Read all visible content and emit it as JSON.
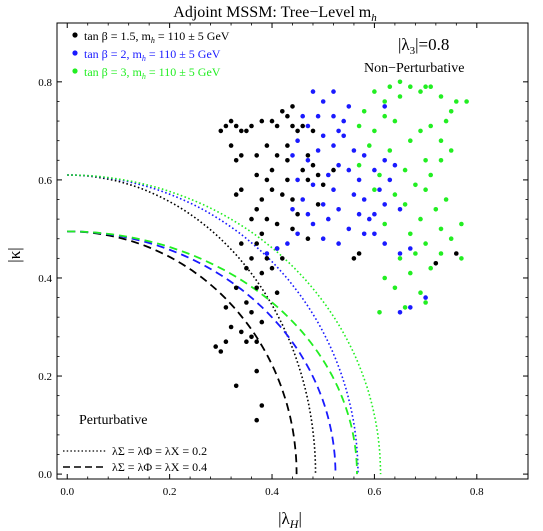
{
  "chart_data": {
    "type": "scatter",
    "title": "Adjoint MSSM: Tree−Level m",
    "title_sub": "h",
    "xlabel": "|λ",
    "xlabel_sub": "H",
    "xlabel_end": "|",
    "ylabel": "|κ|",
    "xlim": [
      -0.02,
      0.9
    ],
    "ylim": [
      -0.01,
      0.92
    ],
    "xticks": [
      "0.0",
      "0.2",
      "0.4",
      "0.6",
      "0.8"
    ],
    "yticks": [
      "0.0",
      "0.2",
      "0.4",
      "0.6",
      "0.8"
    ],
    "xtick_values": [
      0.0,
      0.2,
      0.4,
      0.6,
      0.8
    ],
    "ytick_values": [
      0.0,
      0.2,
      0.4,
      0.6,
      0.8
    ],
    "grid": false,
    "legend_position": "top-left",
    "colors": {
      "black": "#000000",
      "blue": "#1a1aff",
      "green": "#22ee22"
    },
    "annotations": {
      "lambda3": "|λ",
      "lambda3_sub": "3",
      "lambda3_val": "|=0.8",
      "nonpert": "Non−Perturbative",
      "pert": "Perturbative"
    },
    "legend": {
      "black": {
        "pre": "tan β = 1.5, m",
        "sub": "h",
        "post": " = 110 ± 5 GeV"
      },
      "blue": {
        "pre": "tan β = 2, m",
        "sub": "h",
        "post": " = 110 ± 5 GeV"
      },
      "green": {
        "pre": "tan β = 3, m",
        "sub": "h",
        "post": " = 110 ± 5 GeV"
      }
    },
    "line_legend": [
      {
        "style": "dotted",
        "text": "λΣ = λΦ = λX = 0.2"
      },
      {
        "style": "dashed",
        "text": "λΣ = λΦ = λX = 0.4"
      }
    ],
    "curves": [
      {
        "color": "black",
        "style": "dotted",
        "r": 0.61,
        "a": 0.485
      },
      {
        "color": "black",
        "style": "dashed",
        "r": 0.495,
        "a": 0.448
      },
      {
        "color": "blue",
        "style": "dotted",
        "r": 0.61,
        "a": 0.568
      },
      {
        "color": "blue",
        "style": "dashed",
        "r": 0.495,
        "a": 0.524
      },
      {
        "color": "green",
        "style": "dotted",
        "r": 0.61,
        "a": 0.612
      },
      {
        "color": "green",
        "style": "dashed",
        "r": 0.495,
        "a": 0.566
      }
    ],
    "series": [
      {
        "name": "tan β = 1.5",
        "color": "black",
        "points": [
          [
            0.32,
            0.72
          ],
          [
            0.31,
            0.71
          ],
          [
            0.33,
            0.71
          ],
          [
            0.36,
            0.71
          ],
          [
            0.3,
            0.7
          ],
          [
            0.34,
            0.7
          ],
          [
            0.38,
            0.72
          ],
          [
            0.4,
            0.72
          ],
          [
            0.41,
            0.71
          ],
          [
            0.43,
            0.73
          ],
          [
            0.44,
            0.71
          ],
          [
            0.45,
            0.7
          ],
          [
            0.46,
            0.71
          ],
          [
            0.42,
            0.74
          ],
          [
            0.44,
            0.75
          ],
          [
            0.39,
            0.67
          ],
          [
            0.32,
            0.67
          ],
          [
            0.34,
            0.65
          ],
          [
            0.33,
            0.64
          ],
          [
            0.37,
            0.65
          ],
          [
            0.41,
            0.65
          ],
          [
            0.43,
            0.64
          ],
          [
            0.47,
            0.65
          ],
          [
            0.4,
            0.62
          ],
          [
            0.46,
            0.62
          ],
          [
            0.48,
            0.63
          ],
          [
            0.43,
            0.6
          ],
          [
            0.37,
            0.61
          ],
          [
            0.47,
            0.6
          ],
          [
            0.34,
            0.58
          ],
          [
            0.33,
            0.57
          ],
          [
            0.38,
            0.56
          ],
          [
            0.4,
            0.58
          ],
          [
            0.42,
            0.57
          ],
          [
            0.44,
            0.56
          ],
          [
            0.49,
            0.55
          ],
          [
            0.37,
            0.54
          ],
          [
            0.45,
            0.53
          ],
          [
            0.36,
            0.52
          ],
          [
            0.39,
            0.52
          ],
          [
            0.41,
            0.51
          ],
          [
            0.44,
            0.5
          ],
          [
            0.38,
            0.49
          ],
          [
            0.47,
            0.48
          ],
          [
            0.34,
            0.47
          ],
          [
            0.37,
            0.47
          ],
          [
            0.41,
            0.46
          ],
          [
            0.36,
            0.44
          ],
          [
            0.39,
            0.44
          ],
          [
            0.42,
            0.44
          ],
          [
            0.35,
            0.42
          ],
          [
            0.38,
            0.41
          ],
          [
            0.4,
            0.42
          ],
          [
            0.37,
            0.38
          ],
          [
            0.41,
            0.37
          ],
          [
            0.33,
            0.38
          ],
          [
            0.31,
            0.34
          ],
          [
            0.35,
            0.35
          ],
          [
            0.36,
            0.33
          ],
          [
            0.38,
            0.31
          ],
          [
            0.34,
            0.29
          ],
          [
            0.36,
            0.28
          ],
          [
            0.35,
            0.27
          ],
          [
            0.32,
            0.3
          ],
          [
            0.37,
            0.27
          ],
          [
            0.31,
            0.27
          ],
          [
            0.29,
            0.26
          ],
          [
            0.3,
            0.25
          ],
          [
            0.37,
            0.21
          ],
          [
            0.38,
            0.14
          ],
          [
            0.37,
            0.11
          ],
          [
            0.33,
            0.18
          ],
          [
            0.57,
            0.45
          ],
          [
            0.56,
            0.44
          ],
          [
            0.48,
            0.7
          ],
          [
            0.72,
            0.43
          ],
          [
            0.76,
            0.45
          ],
          [
            0.49,
            0.61
          ],
          [
            0.5,
            0.59
          ],
          [
            0.39,
            0.6
          ],
          [
            0.52,
            0.62
          ],
          [
            0.35,
            0.7
          ],
          [
            0.43,
            0.67
          ]
        ]
      },
      {
        "name": "tan β = 2",
        "color": "blue",
        "points": [
          [
            0.48,
            0.78
          ],
          [
            0.52,
            0.78
          ],
          [
            0.5,
            0.76
          ],
          [
            0.55,
            0.75
          ],
          [
            0.49,
            0.73
          ],
          [
            0.46,
            0.73
          ],
          [
            0.47,
            0.71
          ],
          [
            0.53,
            0.7
          ],
          [
            0.54,
            0.72
          ],
          [
            0.5,
            0.69
          ],
          [
            0.45,
            0.68
          ],
          [
            0.52,
            0.67
          ],
          [
            0.49,
            0.66
          ],
          [
            0.56,
            0.66
          ],
          [
            0.58,
            0.65
          ],
          [
            0.44,
            0.65
          ],
          [
            0.47,
            0.64
          ],
          [
            0.53,
            0.63
          ],
          [
            0.55,
            0.62
          ],
          [
            0.51,
            0.61
          ],
          [
            0.57,
            0.6
          ],
          [
            0.45,
            0.6
          ],
          [
            0.48,
            0.59
          ],
          [
            0.52,
            0.58
          ],
          [
            0.56,
            0.57
          ],
          [
            0.58,
            0.56
          ],
          [
            0.46,
            0.56
          ],
          [
            0.5,
            0.55
          ],
          [
            0.53,
            0.54
          ],
          [
            0.57,
            0.53
          ],
          [
            0.44,
            0.54
          ],
          [
            0.47,
            0.53
          ],
          [
            0.51,
            0.52
          ],
          [
            0.59,
            0.52
          ],
          [
            0.48,
            0.51
          ],
          [
            0.55,
            0.5
          ],
          [
            0.58,
            0.49
          ],
          [
            0.6,
            0.49
          ],
          [
            0.45,
            0.49
          ],
          [
            0.5,
            0.48
          ],
          [
            0.53,
            0.47
          ],
          [
            0.43,
            0.47
          ],
          [
            0.41,
            0.46
          ],
          [
            0.39,
            0.45
          ],
          [
            0.62,
            0.47
          ],
          [
            0.65,
            0.45
          ],
          [
            0.67,
            0.46
          ],
          [
            0.62,
            0.64
          ],
          [
            0.64,
            0.63
          ],
          [
            0.6,
            0.62
          ],
          [
            0.63,
            0.6
          ],
          [
            0.61,
            0.58
          ],
          [
            0.62,
            0.55
          ],
          [
            0.65,
            0.54
          ],
          [
            0.6,
            0.53
          ],
          [
            0.67,
            0.34
          ],
          [
            0.65,
            0.33
          ],
          [
            0.7,
            0.36
          ],
          [
            0.62,
            0.75
          ],
          [
            0.52,
            0.73
          ],
          [
            0.54,
            0.69
          ]
        ]
      },
      {
        "name": "tan β = 3",
        "color": "green",
        "points": [
          [
            0.63,
            0.79
          ],
          [
            0.65,
            0.8
          ],
          [
            0.67,
            0.79
          ],
          [
            0.69,
            0.78
          ],
          [
            0.71,
            0.79
          ],
          [
            0.7,
            0.79
          ],
          [
            0.73,
            0.77
          ],
          [
            0.76,
            0.76
          ],
          [
            0.78,
            0.76
          ],
          [
            0.75,
            0.74
          ],
          [
            0.65,
            0.77
          ],
          [
            0.6,
            0.78
          ],
          [
            0.62,
            0.76
          ],
          [
            0.58,
            0.74
          ],
          [
            0.62,
            0.73
          ],
          [
            0.64,
            0.72
          ],
          [
            0.69,
            0.7
          ],
          [
            0.71,
            0.71
          ],
          [
            0.74,
            0.72
          ],
          [
            0.57,
            0.71
          ],
          [
            0.6,
            0.7
          ],
          [
            0.67,
            0.68
          ],
          [
            0.73,
            0.68
          ],
          [
            0.75,
            0.66
          ],
          [
            0.59,
            0.67
          ],
          [
            0.63,
            0.66
          ],
          [
            0.7,
            0.64
          ],
          [
            0.73,
            0.64
          ],
          [
            0.66,
            0.62
          ],
          [
            0.71,
            0.61
          ],
          [
            0.57,
            0.63
          ],
          [
            0.61,
            0.61
          ],
          [
            0.68,
            0.59
          ],
          [
            0.7,
            0.58
          ],
          [
            0.6,
            0.58
          ],
          [
            0.64,
            0.57
          ],
          [
            0.74,
            0.56
          ],
          [
            0.66,
            0.55
          ],
          [
            0.72,
            0.54
          ],
          [
            0.69,
            0.52
          ],
          [
            0.77,
            0.51
          ],
          [
            0.73,
            0.5
          ],
          [
            0.62,
            0.51
          ],
          [
            0.67,
            0.49
          ],
          [
            0.75,
            0.48
          ],
          [
            0.7,
            0.47
          ],
          [
            0.68,
            0.45
          ],
          [
            0.73,
            0.45
          ],
          [
            0.77,
            0.44
          ],
          [
            0.65,
            0.44
          ],
          [
            0.71,
            0.42
          ],
          [
            0.67,
            0.41
          ],
          [
            0.62,
            0.4
          ],
          [
            0.64,
            0.38
          ],
          [
            0.69,
            0.37
          ],
          [
            0.7,
            0.35
          ],
          [
            0.66,
            0.34
          ],
          [
            0.61,
            0.33
          ]
        ]
      }
    ]
  }
}
